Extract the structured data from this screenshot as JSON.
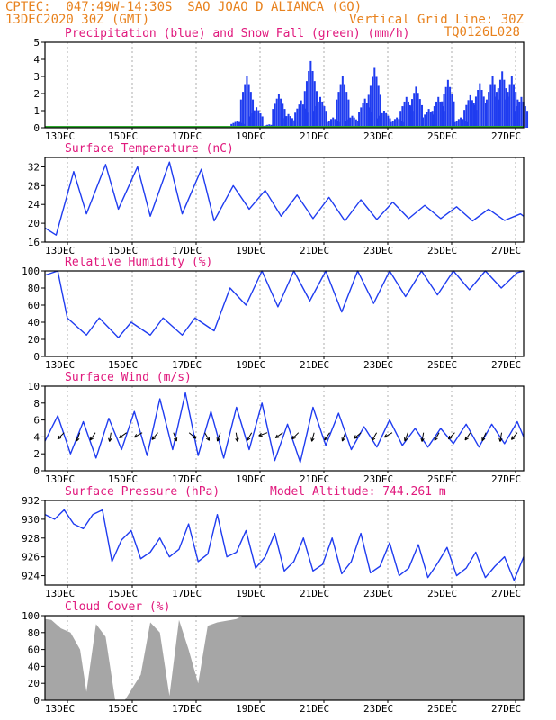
{
  "header": {
    "line1": "CPTEC:  047:49W-14:30S  SAO JOAO D ALIANCA (GO)",
    "line2_left": "13DEC2020 30Z (GMT)",
    "line2_right": "Vertical Grid Line: 30Z",
    "code": "TQ0126L028"
  },
  "chart_data": [
    {
      "type": "bar",
      "title": "Precipitation (blue) and Snow Fall (green) (mm/h)",
      "x_tick_labels": [
        "13DEC",
        "15DEC",
        "17DEC",
        "19DEC",
        "21DEC",
        "23DEC",
        "25DEC",
        "27DEC"
      ],
      "ylim": [
        0,
        5
      ],
      "y_ticks": [
        0,
        1,
        2,
        3,
        4,
        5
      ],
      "x_range_days": [
        0,
        15
      ],
      "series": [
        {
          "color": "#1f3cf0",
          "x": [
            6.0,
            6.3,
            6.6,
            7.0,
            7.3,
            7.6,
            8.0,
            8.3,
            8.6,
            9.0,
            9.3,
            9.6,
            10.0,
            10.3,
            10.6,
            11.0,
            11.3,
            11.6,
            12.0,
            12.3,
            12.6,
            13.0,
            13.3,
            13.6,
            14.0,
            14.3,
            14.6,
            14.9
          ],
          "values": [
            0.4,
            3.0,
            1.2,
            0.2,
            2.0,
            0.8,
            1.6,
            3.9,
            1.8,
            0.6,
            3.0,
            0.7,
            1.7,
            3.5,
            1.0,
            0.6,
            1.8,
            2.4,
            1.1,
            1.8,
            2.8,
            0.6,
            1.9,
            2.6,
            3.0,
            3.3,
            3.0,
            1.8
          ]
        },
        {
          "color": "#2fa82f",
          "x": [
            0,
            15
          ],
          "values": [
            0.05,
            0.05
          ]
        }
      ]
    },
    {
      "type": "line",
      "title": "Surface Temperature (nC)",
      "x_tick_labels": [
        "13DEC",
        "15DEC",
        "17DEC",
        "19DEC",
        "21DEC",
        "23DEC",
        "25DEC",
        "27DEC"
      ],
      "ylim": [
        16,
        34
      ],
      "y_ticks": [
        16,
        20,
        24,
        28,
        32
      ],
      "color": "#1f3cf0",
      "x": [
        0,
        0.35,
        0.9,
        1.3,
        1.9,
        2.3,
        2.9,
        3.3,
        3.9,
        4.3,
        4.9,
        5.3,
        5.9,
        6.4,
        6.9,
        7.4,
        7.9,
        8.4,
        8.9,
        9.4,
        9.9,
        10.4,
        10.9,
        11.4,
        11.9,
        12.4,
        12.9,
        13.4,
        13.9,
        14.4,
        14.9,
        15.0
      ],
      "values": [
        19,
        17.5,
        31,
        22,
        32.5,
        23,
        32,
        21.5,
        33,
        22,
        31.5,
        20.5,
        28,
        23,
        27,
        21.5,
        26,
        21,
        25.5,
        20.5,
        25,
        20.8,
        24.5,
        21,
        23.8,
        21,
        23.5,
        20.5,
        23,
        20.6,
        22,
        21.5
      ]
    },
    {
      "type": "line",
      "title": "Relative Humidity (%)",
      "x_tick_labels": [
        "13DEC",
        "15DEC",
        "17DEC",
        "19DEC",
        "21DEC",
        "23DEC",
        "25DEC",
        "27DEC"
      ],
      "ylim": [
        0,
        100
      ],
      "y_ticks": [
        0,
        20,
        40,
        60,
        80,
        100
      ],
      "color": "#1f3cf0",
      "x": [
        0,
        0.4,
        0.7,
        1.3,
        1.7,
        2.3,
        2.7,
        3.3,
        3.7,
        4.3,
        4.7,
        5.3,
        5.8,
        6.3,
        6.8,
        7.3,
        7.8,
        8.3,
        8.8,
        9.3,
        9.8,
        10.3,
        10.8,
        11.3,
        11.8,
        12.3,
        12.8,
        13.3,
        13.8,
        14.3,
        14.8,
        15.0
      ],
      "values": [
        95,
        100,
        45,
        25,
        45,
        22,
        40,
        25,
        45,
        25,
        45,
        30,
        80,
        60,
        100,
        58,
        100,
        65,
        100,
        52,
        100,
        62,
        100,
        70,
        100,
        72,
        100,
        78,
        100,
        80,
        98,
        100
      ]
    },
    {
      "type": "line",
      "title": "Surface Wind (m/s)",
      "x_tick_labels": [
        "13DEC",
        "15DEC",
        "17DEC",
        "19DEC",
        "21DEC",
        "23DEC",
        "25DEC",
        "27DEC"
      ],
      "ylim": [
        0,
        10
      ],
      "y_ticks": [
        0,
        2,
        4,
        6,
        8,
        10
      ],
      "color": "#1f3cf0",
      "x": [
        0,
        0.4,
        0.8,
        1.2,
        1.6,
        2.0,
        2.4,
        2.8,
        3.2,
        3.6,
        4.0,
        4.4,
        4.8,
        5.2,
        5.6,
        6.0,
        6.4,
        6.8,
        7.2,
        7.6,
        8.0,
        8.4,
        8.8,
        9.2,
        9.6,
        10.0,
        10.4,
        10.8,
        11.2,
        11.6,
        12.0,
        12.4,
        12.8,
        13.2,
        13.6,
        14.0,
        14.4,
        14.8,
        15.0
      ],
      "values": [
        3.5,
        6.5,
        2.0,
        5.8,
        1.5,
        6.2,
        2.5,
        7.0,
        1.8,
        8.5,
        2.5,
        9.2,
        1.8,
        7.0,
        1.5,
        7.5,
        2.5,
        8.0,
        1.2,
        5.5,
        1.0,
        7.5,
        3.0,
        6.8,
        2.5,
        5.2,
        2.8,
        6.0,
        3.0,
        5.0,
        2.8,
        5.0,
        3.2,
        5.5,
        2.8,
        5.5,
        3.2,
        5.8,
        4.0
      ],
      "arrow_dirs_deg": [
        225,
        200,
        215,
        190,
        235,
        240,
        220,
        160,
        130,
        150,
        200,
        170,
        210,
        250,
        235,
        225,
        195,
        215,
        200,
        230,
        210,
        240,
        200,
        190,
        210,
        225,
        215,
        205,
        190,
        220
      ]
    },
    {
      "type": "line",
      "title": "Surface Pressure (hPa)",
      "annotation": "Model Altitude: 744.261  m",
      "x_tick_labels": [
        "13DEC",
        "15DEC",
        "17DEC",
        "19DEC",
        "21DEC",
        "23DEC",
        "25DEC",
        "27DEC"
      ],
      "ylim": [
        923,
        932
      ],
      "y_ticks": [
        924,
        926,
        928,
        930,
        932
      ],
      "color": "#1f3cf0",
      "x": [
        0,
        0.3,
        0.6,
        0.9,
        1.2,
        1.5,
        1.8,
        2.1,
        2.4,
        2.7,
        3.0,
        3.3,
        3.6,
        3.9,
        4.2,
        4.5,
        4.8,
        5.1,
        5.4,
        5.7,
        6.0,
        6.3,
        6.6,
        6.9,
        7.2,
        7.5,
        7.8,
        8.1,
        8.4,
        8.7,
        9.0,
        9.3,
        9.6,
        9.9,
        10.2,
        10.5,
        10.8,
        11.1,
        11.4,
        11.7,
        12.0,
        12.3,
        12.6,
        12.9,
        13.2,
        13.5,
        13.8,
        14.1,
        14.4,
        14.7,
        15.0
      ],
      "values": [
        930.5,
        930.0,
        931.0,
        929.5,
        929.0,
        930.5,
        931.0,
        925.5,
        927.8,
        928.8,
        925.8,
        926.5,
        928.0,
        926.0,
        926.8,
        929.5,
        925.5,
        926.3,
        930.5,
        926.0,
        926.5,
        928.8,
        924.8,
        926.0,
        928.5,
        924.5,
        925.5,
        928.0,
        924.5,
        925.2,
        928.0,
        924.2,
        925.5,
        928.5,
        924.3,
        925.0,
        927.5,
        924.0,
        924.8,
        927.3,
        923.8,
        925.3,
        927.0,
        924.0,
        924.8,
        926.5,
        923.8,
        925.0,
        926.0,
        923.5,
        926.0
      ]
    },
    {
      "type": "area",
      "title": "Cloud Cover (%)",
      "x_tick_labels": [
        "13DEC",
        "15DEC",
        "17DEC",
        "19DEC",
        "21DEC",
        "23DEC",
        "25DEC",
        "27DEC"
      ],
      "ylim": [
        0,
        100
      ],
      "y_ticks": [
        0,
        20,
        40,
        60,
        80,
        100
      ],
      "color": "#a6a6a6",
      "x": [
        0,
        0.2,
        0.5,
        0.8,
        1.1,
        1.3,
        1.6,
        1.9,
        2.2,
        2.5,
        2.7,
        3.0,
        3.3,
        3.6,
        3.9,
        4.2,
        4.5,
        4.8,
        5.1,
        5.4,
        5.7,
        6.0,
        6.2,
        7.0,
        8.0,
        9.0,
        10.0,
        11.0,
        12.0,
        13.0,
        14.0,
        15.0
      ],
      "values": [
        96,
        95,
        85,
        80,
        60,
        10,
        90,
        75,
        0,
        0,
        12,
        30,
        92,
        80,
        5,
        95,
        60,
        20,
        88,
        92,
        94,
        96,
        100,
        100,
        100,
        100,
        100,
        100,
        100,
        100,
        100,
        100
      ]
    }
  ]
}
